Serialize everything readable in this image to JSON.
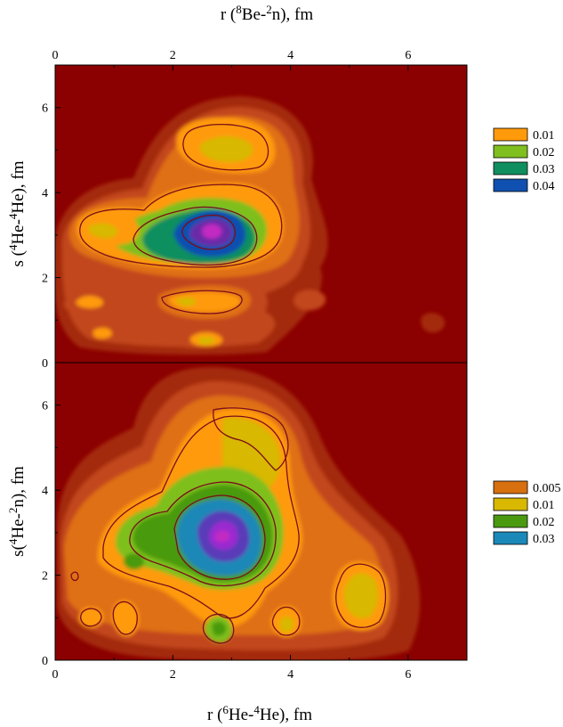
{
  "chart_data": [
    {
      "type": "heatmap",
      "x_axis_label_main": "r (",
      "x_axis_label_sup1": "8",
      "x_axis_label_mid": "Be-",
      "x_axis_label_sup2": "2",
      "x_axis_label_end": "n), fm",
      "x_axis_position": "top",
      "y_axis_label_main": "s (",
      "y_axis_label_sup1": "4",
      "y_axis_label_mid": "He-",
      "y_axis_label_sup2": "4",
      "y_axis_label_end": "He), fm",
      "xlim": [
        0,
        7
      ],
      "ylim": [
        0,
        7
      ],
      "x_ticks": [
        "0",
        "2",
        "4",
        "6"
      ],
      "y_ticks": [
        "0",
        "2",
        "4",
        "6"
      ],
      "background_color": "#8b0000",
      "legend": [
        {
          "label": "0.01",
          "color": "#ff9a0a"
        },
        {
          "label": "0.02",
          "color": "#7fbf1f"
        },
        {
          "label": "0.03",
          "color": "#0f8f5f"
        },
        {
          "label": "0.04",
          "color": "#1050b0"
        }
      ],
      "legend_placement": "right",
      "peaks": [
        {
          "x": 2.5,
          "y": 3.2,
          "value": 0.045
        },
        {
          "x": 2.7,
          "y": 5.0,
          "value": 0.012
        },
        {
          "x": 0.8,
          "y": 3.1,
          "value": 0.012
        },
        {
          "x": 2.2,
          "y": 1.5,
          "value": 0.01
        },
        {
          "x": 2.5,
          "y": 0.6,
          "value": 0.008
        }
      ]
    },
    {
      "type": "heatmap",
      "x_axis_label_main": "r (",
      "x_axis_label_sup1": "6",
      "x_axis_label_mid": "He-",
      "x_axis_label_sup2": "4",
      "x_axis_label_end": "He), fm",
      "x_axis_position": "bottom",
      "y_axis_label_main": "s(",
      "y_axis_label_sup1": "4",
      "y_axis_label_mid": "He-",
      "y_axis_label_sup2": "2",
      "y_axis_label_end": "n), fm",
      "xlim": [
        0,
        7
      ],
      "ylim": [
        0,
        7
      ],
      "x_ticks": [
        "0",
        "2",
        "4",
        "6"
      ],
      "y_ticks": [
        "0",
        "2",
        "4",
        "6"
      ],
      "background_color": "#8b0000",
      "legend": [
        {
          "label": "0.005",
          "color": "#d87010"
        },
        {
          "label": "0.01",
          "color": "#d8b800"
        },
        {
          "label": "0.02",
          "color": "#4a9a10"
        },
        {
          "label": "0.03",
          "color": "#1a88b8"
        }
      ],
      "legend_placement": "right",
      "peaks": [
        {
          "x": 2.8,
          "y": 3.0,
          "value": 0.04
        },
        {
          "x": 3.4,
          "y": 5.0,
          "value": 0.01
        },
        {
          "x": 5.1,
          "y": 1.6,
          "value": 0.01
        },
        {
          "x": 2.75,
          "y": 0.85,
          "value": 0.02
        },
        {
          "x": 1.4,
          "y": 2.2,
          "value": 0.02
        }
      ]
    }
  ]
}
